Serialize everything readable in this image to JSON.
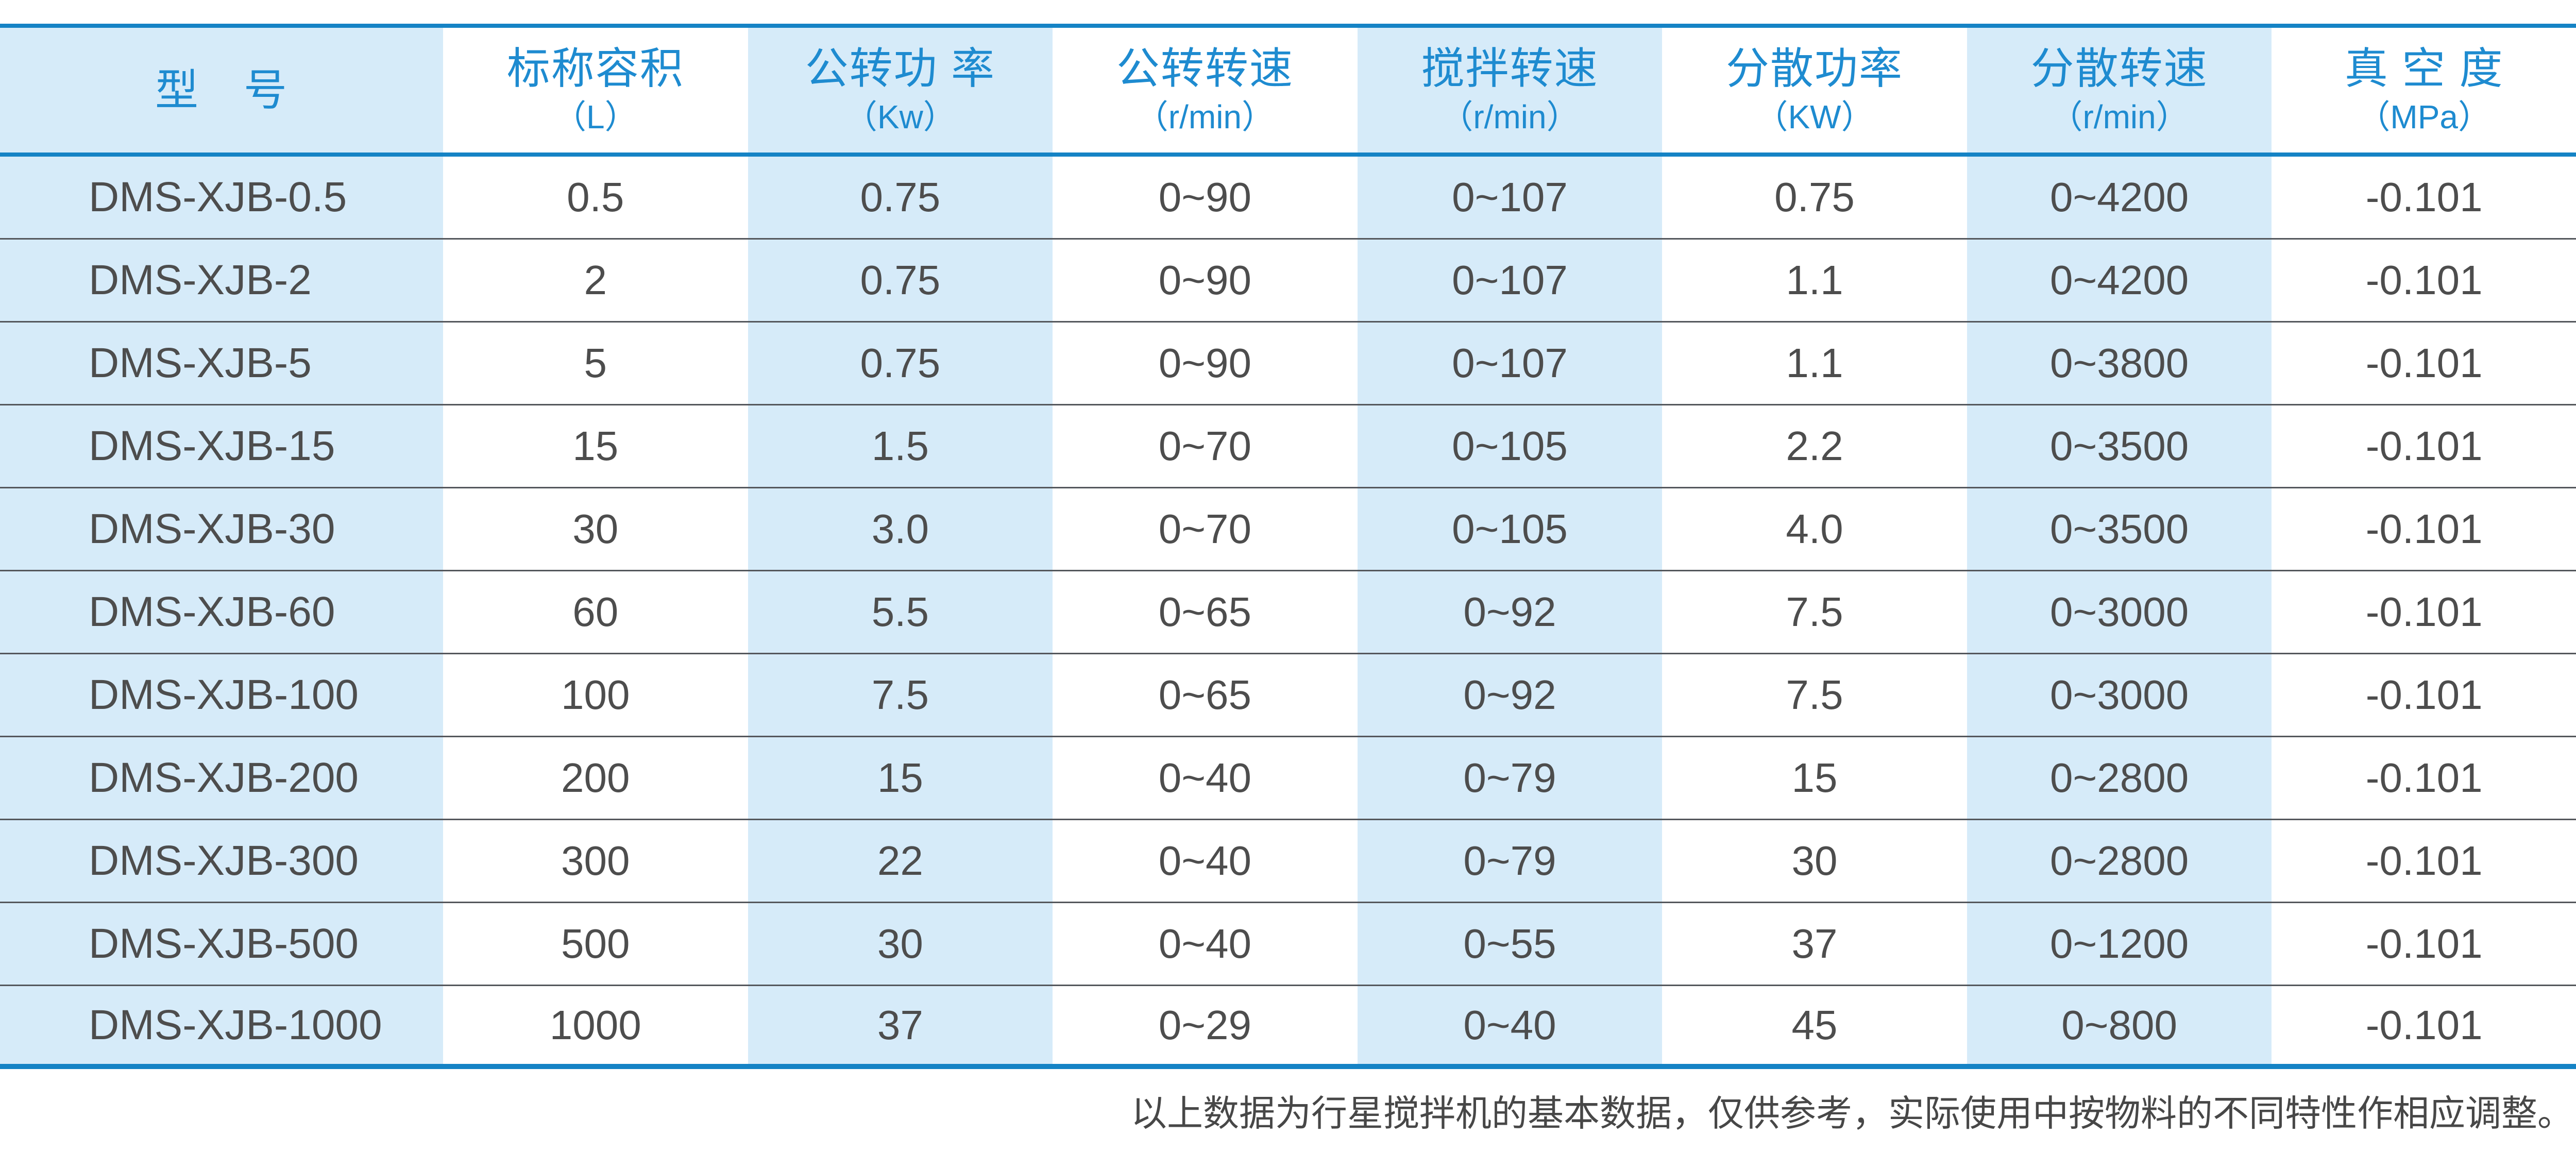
{
  "colors": {
    "line-blue": "#1583c5",
    "header-blue": "#1e8bd0",
    "cell-blue": "#d6ebf9",
    "text-dark": "#4d4d4d",
    "sep-gray": "#54575c",
    "footnote-gray": "#474747"
  },
  "table": {
    "columns": [
      {
        "label": "型　号",
        "unit": ""
      },
      {
        "label": "标称容积",
        "unit": "（L）"
      },
      {
        "label": "公转功 率",
        "unit": "（Kw）"
      },
      {
        "label": "公转转速",
        "unit": "（r/min）"
      },
      {
        "label": "搅拌转速",
        "unit": "（r/min）"
      },
      {
        "label": "分散功率",
        "unit": "（KW）"
      },
      {
        "label": "分散转速",
        "unit": "（r/min）"
      },
      {
        "label": "真 空 度",
        "unit": "（MPa）"
      }
    ],
    "rows": [
      [
        "DMS-XJB-0.5",
        "0.5",
        "0.75",
        "0~90",
        "0~107",
        "0.75",
        "0~4200",
        "-0.101"
      ],
      [
        "DMS-XJB-2",
        "2",
        "0.75",
        "0~90",
        "0~107",
        "1.1",
        "0~4200",
        "-0.101"
      ],
      [
        "DMS-XJB-5",
        "5",
        "0.75",
        "0~90",
        "0~107",
        "1.1",
        "0~3800",
        "-0.101"
      ],
      [
        "DMS-XJB-15",
        "15",
        "1.5",
        "0~70",
        "0~105",
        "2.2",
        "0~3500",
        "-0.101"
      ],
      [
        "DMS-XJB-30",
        "30",
        "3.0",
        "0~70",
        "0~105",
        "4.0",
        "0~3500",
        "-0.101"
      ],
      [
        "DMS-XJB-60",
        "60",
        "5.5",
        "0~65",
        "0~92",
        "7.5",
        "0~3000",
        "-0.101"
      ],
      [
        "DMS-XJB-100",
        "100",
        "7.5",
        "0~65",
        "0~92",
        "7.5",
        "0~3000",
        "-0.101"
      ],
      [
        "DMS-XJB-200",
        "200",
        "15",
        "0~40",
        "0~79",
        "15",
        "0~2800",
        "-0.101"
      ],
      [
        "DMS-XJB-300",
        "300",
        "22",
        "0~40",
        "0~79",
        "30",
        "0~2800",
        "-0.101"
      ],
      [
        "DMS-XJB-500",
        "500",
        "30",
        "0~40",
        "0~55",
        "37",
        "0~1200",
        "-0.101"
      ],
      [
        "DMS-XJB-1000",
        "1000",
        "37",
        "0~29",
        "0~40",
        "45",
        "0~800",
        "-0.101"
      ]
    ]
  },
  "footnote": "以上数据为行星搅拌机的基本数据，仅供参考，实际使用中按物料的不同特性作相应调整。"
}
